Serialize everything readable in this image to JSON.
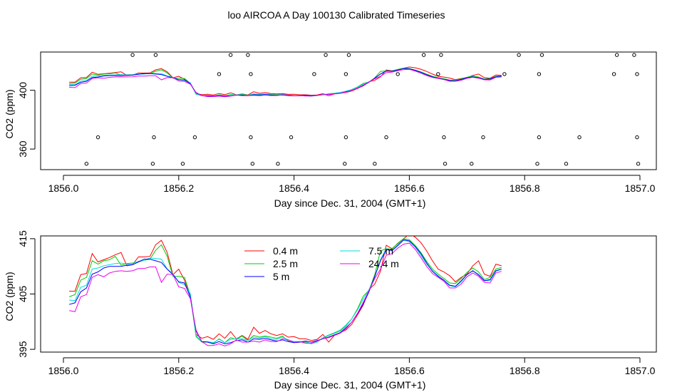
{
  "title": "loo AIRCOA A  Day 100130  Calibrated Timeseries",
  "colors": {
    "0.4 m": "#ff0000",
    "2.5 m": "#00cc00",
    "5 m": "#0000ff",
    "7.5 m": "#00dddd",
    "24.4 m": "#ee00ee"
  },
  "chart_data": [
    {
      "type": "scatter+line",
      "xlabel": "Day since Dec. 31, 2004 (GMT+1)",
      "ylabel": "CO2 (ppm)",
      "xlim": [
        1856.0,
        1857.0
      ],
      "xticks": [
        1856.0,
        1856.2,
        1856.4,
        1856.6,
        1856.8,
        1857.0
      ],
      "xtick_labels": [
        "1856.0",
        "1856.2",
        "1856.4",
        "1856.6",
        "1856.8",
        "1857.0"
      ],
      "ylim": [
        346,
        426
      ],
      "yticks": [
        360,
        400
      ],
      "ytick_labels": [
        "360",
        "400"
      ],
      "grid": false,
      "lines_ref": "timeseries",
      "scatter_series": [
        {
          "name": "row-1",
          "y": 424,
          "x": [
            1856.12,
            1856.16,
            1856.29,
            1856.32,
            1856.455,
            1856.495,
            1856.625,
            1856.655,
            1856.79,
            1856.83,
            1856.96,
            1856.99
          ]
        },
        {
          "name": "row-2",
          "y": 411,
          "x": [
            1856.27,
            1856.325,
            1856.435,
            1856.49,
            1856.58,
            1856.65,
            1856.765,
            1856.825,
            1856.955,
            1856.995
          ]
        },
        {
          "name": "row-3",
          "y": 368,
          "x": [
            1856.06,
            1856.157,
            1856.228,
            1856.325,
            1856.395,
            1856.49,
            1856.56,
            1856.66,
            1856.728,
            1856.825,
            1856.895,
            1856.995
          ]
        },
        {
          "name": "row-4",
          "y": 350,
          "x": [
            1856.04,
            1856.155,
            1856.207,
            1856.328,
            1856.372,
            1856.488,
            1856.54,
            1856.662,
            1856.708,
            1856.822,
            1856.872,
            1856.997
          ]
        }
      ]
    },
    {
      "type": "line",
      "xlabel": "Day since Dec. 31, 2004 (GMT+1)",
      "ylabel": "CO2 (ppm)",
      "xlim": [
        1856.0,
        1857.0
      ],
      "xticks": [
        1856.0,
        1856.2,
        1856.4,
        1856.6,
        1856.8,
        1857.0
      ],
      "xtick_labels": [
        "1856.0",
        "1856.2",
        "1856.4",
        "1856.6",
        "1856.8",
        "1857.0"
      ],
      "ylim": [
        394.5,
        415.5
      ],
      "yticks": [
        395,
        405,
        415
      ],
      "ytick_labels": [
        "395",
        "405",
        "415"
      ],
      "grid": false,
      "legend": {
        "placement": "top-center",
        "columns": 2,
        "entries": [
          "0.4 m",
          "2.5 m",
          "5 m",
          "7.5 m",
          "24.4 m"
        ]
      },
      "lines_ref": "timeseries"
    }
  ],
  "timeseries": {
    "x_start": 1856.01,
    "x_step": 0.01,
    "series": [
      {
        "name": "0.4 m",
        "color": "#ff0000",
        "values": [
          405.5,
          405.5,
          408.5,
          408.7,
          412.3,
          410.8,
          411.2,
          411.6,
          412.1,
          412.5,
          410.1,
          410.3,
          411.7,
          411.7,
          411.8,
          413.9,
          414.7,
          412.5,
          408.5,
          409.5,
          407.5,
          404.8,
          397.7,
          397.0,
          397.3,
          396.8,
          397.8,
          397.0,
          398.2,
          396.9,
          397.5,
          396.8,
          399.0,
          397.9,
          398.4,
          397.8,
          397.5,
          397.8,
          397.2,
          397.3,
          396.9,
          396.9,
          396.6,
          396.8,
          397.7,
          396.3,
          397.5,
          398.0,
          398.5,
          399.5,
          401.2,
          403.0,
          405.8,
          406.8,
          409.1,
          413.8,
          413.2,
          414.1,
          415.0,
          415.8,
          415.3,
          414.3,
          412.8,
          411.0,
          409.5,
          409.0,
          408.3,
          407.2,
          408.0,
          408.6,
          410.1,
          411.0,
          408.6,
          408.2,
          410.4,
          410.1
        ]
      },
      {
        "name": "2.5 m",
        "color": "#00cc00",
        "values": [
          404.5,
          404.9,
          407.5,
          408.0,
          411.0,
          410.4,
          411.0,
          411.2,
          411.8,
          410.2,
          410.5,
          410.6,
          410.8,
          411.1,
          411.3,
          412.9,
          413.9,
          411.8,
          408.2,
          408.2,
          408.0,
          404.8,
          397.3,
          396.3,
          396.3,
          396.1,
          396.9,
          396.2,
          397.1,
          396.8,
          397.4,
          396.6,
          397.5,
          397.2,
          397.4,
          397.2,
          397.0,
          397.4,
          396.5,
          396.2,
          396.3,
          396.3,
          396.0,
          396.5,
          397.0,
          397.5,
          397.9,
          398.3,
          399.2,
          400.5,
          402.3,
          404.6,
          405.7,
          408.5,
          412.8,
          413.2,
          413.1,
          414.2,
          415.0,
          414.8,
          413.8,
          412.5,
          410.9,
          409.5,
          408.6,
          407.8,
          407.0,
          406.9,
          407.8,
          408.9,
          409.7,
          409.0,
          407.6,
          408.0,
          409.5,
          409.8
        ]
      },
      {
        "name": "5 m",
        "color": "#0000ff",
        "values": [
          403.1,
          403.4,
          405.4,
          406.1,
          408.6,
          409.0,
          409.7,
          410.0,
          410.0,
          410.0,
          410.2,
          410.3,
          410.8,
          411.3,
          411.3,
          411.0,
          410.7,
          409.5,
          408.5,
          407.2,
          407.0,
          404.5,
          398.3,
          396.4,
          396.3,
          396.0,
          396.4,
          396.0,
          396.2,
          396.6,
          396.7,
          396.3,
          396.9,
          396.8,
          397.0,
          396.7,
          396.5,
          396.7,
          396.4,
          396.2,
          396.3,
          396.5,
          396.3,
          396.6,
          396.9,
          397.2,
          397.6,
          398.0,
          398.9,
          399.9,
          401.4,
          403.2,
          405.4,
          408.2,
          411.0,
          413.0,
          412.9,
          413.8,
          414.8,
          414.6,
          413.6,
          412.3,
          410.6,
          409.1,
          408.2,
          407.5,
          406.6,
          406.4,
          407.4,
          408.5,
          409.2,
          408.5,
          407.4,
          407.6,
          409.2,
          409.5
        ]
      },
      {
        "name": "7.5 m",
        "color": "#00dddd",
        "values": [
          403.9,
          403.8,
          406.2,
          406.6,
          409.5,
          409.7,
          410.1,
          410.3,
          410.5,
          410.6,
          410.4,
          410.5,
          410.9,
          411.1,
          411.5,
          411.4,
          411.3,
          409.5,
          408.7,
          407.1,
          406.7,
          405.1,
          397.5,
          396.4,
          396.4,
          396.2,
          396.8,
          396.2,
          396.8,
          396.9,
          396.9,
          396.6,
          397.2,
          397.0,
          397.3,
          396.9,
          396.8,
          397.2,
          396.7,
          396.4,
          396.4,
          396.4,
          396.0,
          396.3,
          397.1,
          397.6,
          398.0,
          398.5,
          399.4,
          400.5,
          402.1,
          404.1,
          405.8,
          408.1,
          411.2,
          413.2,
          412.8,
          413.7,
          414.7,
          414.5,
          413.5,
          412.0,
          410.4,
          409.2,
          408.3,
          407.3,
          406.5,
          406.3,
          407.2,
          408.5,
          409.2,
          408.4,
          407.4,
          407.4,
          409.1,
          409.5
        ]
      },
      {
        "name": "24.4 m",
        "color": "#ee00ee",
        "values": [
          402.0,
          401.8,
          404.5,
          404.9,
          408.0,
          408.5,
          408.1,
          408.8,
          409.1,
          409.2,
          409.1,
          409.2,
          409.6,
          409.6,
          409.9,
          409.9,
          407.1,
          408.6,
          408.5,
          406.3,
          406.0,
          404.2,
          398.5,
          396.4,
          395.7,
          395.7,
          396.0,
          395.6,
          396.0,
          396.7,
          396.3,
          396.3,
          396.5,
          396.3,
          396.7,
          396.4,
          396.4,
          396.9,
          396.7,
          396.3,
          396.4,
          396.1,
          396.1,
          396.5,
          396.9,
          397.1,
          397.5,
          397.9,
          398.7,
          399.9,
          401.5,
          403.5,
          405.6,
          407.8,
          409.5,
          412.0,
          412.3,
          413.3,
          414.0,
          414.2,
          413.1,
          411.6,
          410.0,
          408.7,
          408.0,
          407.3,
          406.1,
          406.1,
          406.8,
          408.1,
          408.8,
          408.2,
          407.1,
          407.0,
          408.8,
          409.1
        ]
      }
    ]
  }
}
